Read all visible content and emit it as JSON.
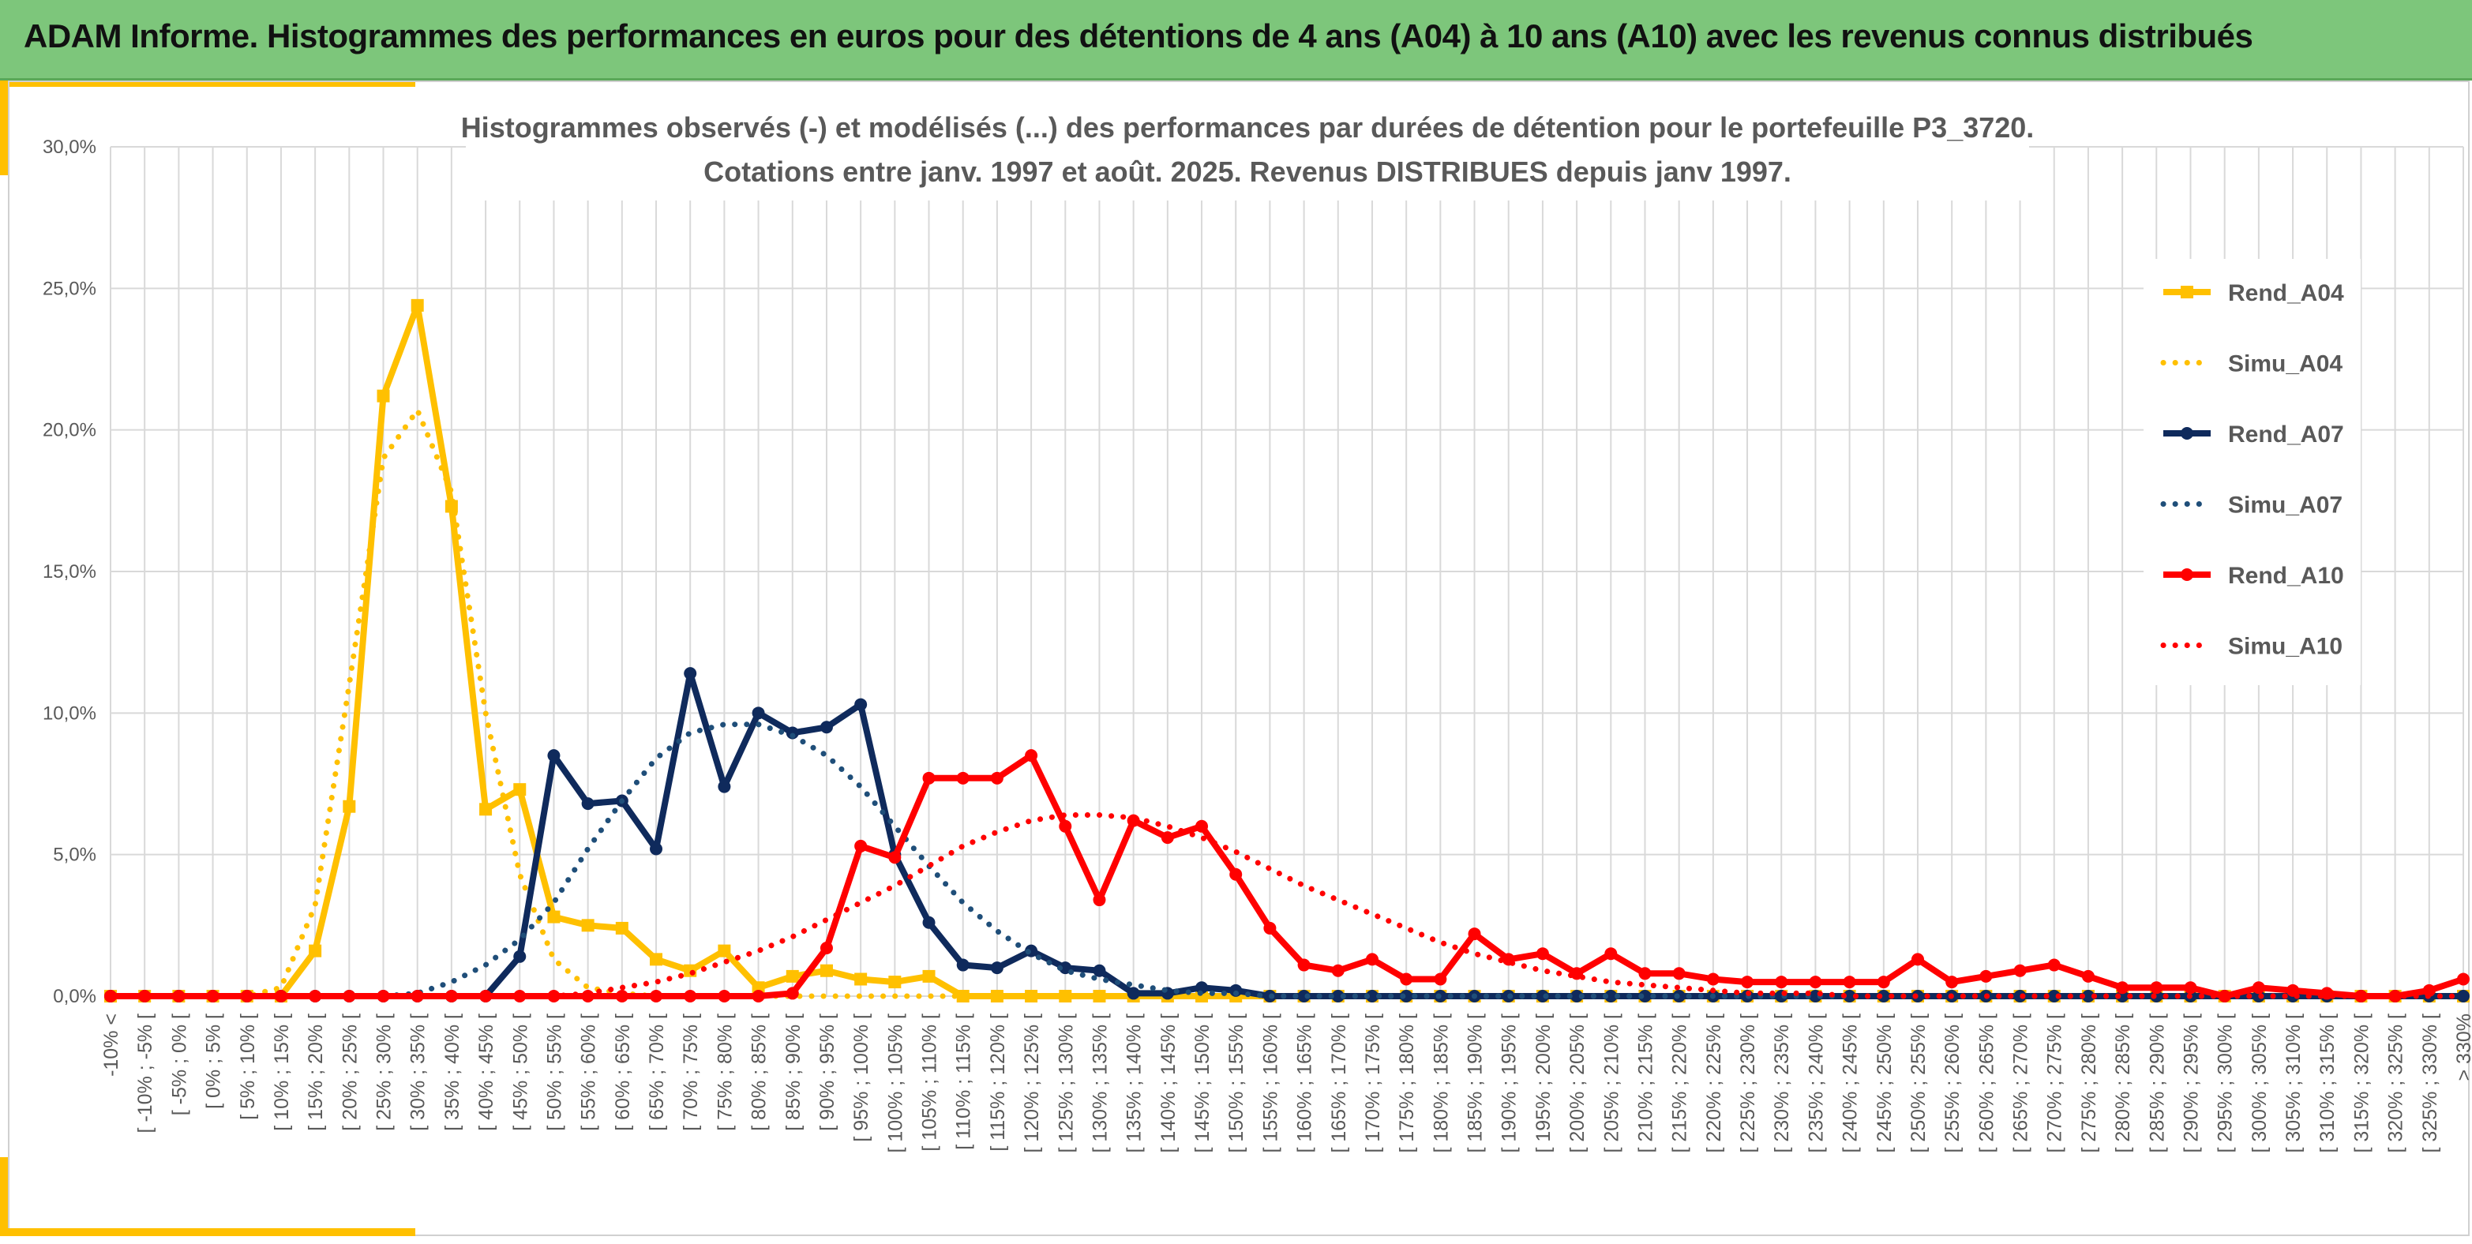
{
  "header": {
    "title": "ADAM Informe. Histogrammes des performances en euros pour des détentions de 4 ans (A04) à 10 ans (A10) avec les revenus connus distribués"
  },
  "colors": {
    "header_bg": "#7dc67b",
    "accent": "#ffc000",
    "A04": "#ffc000",
    "A07": "#0f2a5c",
    "A07_simu": "#1f4e79",
    "A10": "#ff0000"
  },
  "chart_data": {
    "type": "line",
    "title_lines": [
      "Histogrammes observés (-) et modélisés (...) des performances par durées de détention pour le portefeuille P3_3720.",
      "Cotations entre janv. 1997 et août. 2025. Revenus DISTRIBUES depuis janv 1997."
    ],
    "xlabel": "",
    "ylabel": "",
    "y_ticks": [
      "0,0%",
      "5,0%",
      "10,0%",
      "15,0%",
      "20,0%",
      "25,0%",
      "30,0%"
    ],
    "ylim": [
      0,
      30
    ],
    "grid": true,
    "legend_position": "right",
    "categories": [
      "-10% <",
      "[ -10% ; -5% [",
      "[ -5% ; 0% [",
      "[ 0% ; 5% [",
      "[ 5% ; 10% [",
      "[ 10% ; 15% [",
      "[ 15% ; 20% [",
      "[ 20% ; 25% [",
      "[ 25% ; 30% [",
      "[ 30% ; 35% [",
      "[ 35% ; 40% [",
      "[ 40% ; 45% [",
      "[ 45% ; 50% [",
      "[ 50% ; 55% [",
      "[ 55% ; 60% [",
      "[ 60% ; 65% [",
      "[ 65% ; 70% [",
      "[ 70% ; 75% [",
      "[ 75% ; 80% [",
      "[ 80% ; 85% [",
      "[ 85% ; 90% [",
      "[ 90% ; 95% [",
      "[ 95% ; 100% [",
      "[ 100% ; 105% [",
      "[ 105% ; 110% [",
      "[ 110% ; 115% [",
      "[ 115% ; 120% [",
      "[ 120% ; 125% [",
      "[ 125% ; 130% [",
      "[ 130% ; 135% [",
      "[ 135% ; 140% [",
      "[ 140% ; 145% [",
      "[ 145% ; 150% [",
      "[ 150% ; 155% [",
      "[ 155% ; 160% [",
      "[ 160% ; 165% [",
      "[ 165% ; 170% [",
      "[ 170% ; 175% [",
      "[ 175% ; 180% [",
      "[ 180% ; 185% [",
      "[ 185% ; 190% [",
      "[ 190% ; 195% [",
      "[ 195% ; 200% [",
      "[ 200% ; 205% [",
      "[ 205% ; 210% [",
      "[ 210% ; 215% [",
      "[ 215% ; 220% [",
      "[ 220% ; 225% [",
      "[ 225% ; 230% [",
      "[ 230% ; 235% [",
      "[ 235% ; 240% [",
      "[ 240% ; 245% [",
      "[ 245% ; 250% [",
      "[ 250% ; 255% [",
      "[ 255% ; 260% [",
      "[ 260% ; 265% [",
      "[ 265% ; 270% [",
      "[ 270% ; 275% [",
      "[ 275% ; 280% [",
      "[ 280% ; 285% [",
      "[ 285% ; 290% [",
      "[ 290% ; 295% [",
      "[ 295% ; 300% [",
      "[ 300% ; 305% [",
      "[ 305% ; 310% [",
      "[ 310% ; 315% [",
      "[ 315% ; 320% [",
      "[ 320% ; 325% [",
      "[ 325% ; 330% [",
      "> 330%"
    ],
    "series": [
      {
        "name": "Rend_A04",
        "style": "solid",
        "marker": "square",
        "color": "#ffc000",
        "values": [
          0,
          0,
          0,
          0,
          0,
          0,
          1.6,
          6.7,
          21.2,
          24.4,
          17.3,
          6.6,
          7.3,
          2.8,
          2.5,
          2.4,
          1.3,
          0.9,
          1.6,
          0.3,
          0.7,
          0.9,
          0.6,
          0.5,
          0.7,
          0,
          0,
          0,
          0,
          0,
          0,
          0,
          0,
          0,
          0,
          0,
          0,
          0,
          0,
          0,
          0,
          0,
          0,
          0,
          0,
          0,
          0,
          0,
          0,
          0,
          0,
          0,
          0,
          0,
          0,
          0,
          0,
          0,
          0,
          0,
          0,
          0,
          0,
          0,
          0,
          0,
          0,
          0,
          0,
          0
        ]
      },
      {
        "name": "Simu_A04",
        "style": "dotted",
        "marker": "none",
        "color": "#ffc000",
        "values": [
          0,
          0,
          0,
          0,
          0,
          0.3,
          3.2,
          11.0,
          19.0,
          20.7,
          17.8,
          10.0,
          4.3,
          1.3,
          0.3,
          0.1,
          0,
          0,
          0,
          0,
          0,
          0,
          0,
          0,
          0,
          0,
          0,
          0,
          0,
          0,
          0,
          0,
          0,
          0,
          0,
          0,
          0,
          0,
          0,
          0,
          0,
          0,
          0,
          0,
          0,
          0,
          0,
          0,
          0,
          0,
          0,
          0,
          0,
          0,
          0,
          0,
          0,
          0,
          0,
          0,
          0,
          0,
          0,
          0,
          0,
          0,
          0,
          0,
          0,
          0
        ]
      },
      {
        "name": "Rend_A07",
        "style": "solid",
        "marker": "circle",
        "color": "#0f2a5c",
        "values": [
          0,
          0,
          0,
          0,
          0,
          0,
          0,
          0,
          0,
          0,
          0,
          0,
          1.4,
          8.5,
          6.8,
          6.9,
          5.2,
          11.4,
          7.4,
          10.0,
          9.3,
          9.5,
          10.3,
          5.0,
          2.6,
          1.1,
          1.0,
          1.6,
          1.0,
          0.9,
          0.1,
          0.1,
          0.3,
          0.2,
          0,
          0,
          0,
          0,
          0,
          0,
          0,
          0,
          0,
          0,
          0,
          0,
          0,
          0,
          0,
          0,
          0,
          0,
          0,
          0,
          0,
          0,
          0,
          0,
          0,
          0,
          0,
          0,
          0,
          0,
          0,
          0,
          0,
          0,
          0,
          0
        ]
      },
      {
        "name": "Simu_A07",
        "style": "dotted",
        "marker": "none",
        "color": "#1f4e79",
        "values": [
          0,
          0,
          0,
          0,
          0,
          0,
          0,
          0,
          0,
          0.1,
          0.5,
          1.1,
          2.0,
          3.3,
          5.2,
          6.9,
          8.4,
          9.3,
          9.6,
          9.6,
          9.2,
          8.5,
          7.4,
          6.0,
          4.6,
          3.3,
          2.3,
          1.5,
          0.9,
          0.6,
          0.4,
          0.2,
          0.1,
          0.1,
          0,
          0,
          0,
          0,
          0,
          0,
          0,
          0,
          0,
          0,
          0,
          0,
          0,
          0,
          0,
          0,
          0,
          0,
          0,
          0,
          0,
          0,
          0,
          0,
          0,
          0,
          0,
          0,
          0,
          0,
          0,
          0,
          0,
          0,
          0,
          0
        ]
      },
      {
        "name": "Rend_A10",
        "style": "solid",
        "marker": "circle",
        "color": "#ff0000",
        "values": [
          0,
          0,
          0,
          0,
          0,
          0,
          0,
          0,
          0,
          0,
          0,
          0,
          0,
          0,
          0,
          0,
          0,
          0,
          0,
          0,
          0.1,
          1.7,
          5.3,
          4.9,
          7.7,
          7.7,
          7.7,
          8.5,
          6.0,
          3.4,
          6.2,
          5.6,
          6.0,
          4.3,
          2.4,
          1.1,
          0.9,
          1.3,
          0.6,
          0.6,
          2.2,
          1.3,
          1.5,
          0.8,
          1.5,
          0.8,
          0.8,
          0.6,
          0.5,
          0.5,
          0.5,
          0.5,
          0.5,
          1.3,
          0.5,
          0.7,
          0.9,
          1.1,
          0.7,
          0.3,
          0.3,
          0.3,
          0,
          0.3,
          0.2,
          0.1,
          0,
          0,
          0.2,
          0.6
        ]
      },
      {
        "name": "Simu_A10",
        "style": "dotted",
        "marker": "none",
        "color": "#ff0000",
        "values": [
          0,
          0,
          0,
          0,
          0,
          0,
          0,
          0,
          0,
          0,
          0,
          0,
          0,
          0,
          0.1,
          0.3,
          0.5,
          0.8,
          1.2,
          1.6,
          2.1,
          2.7,
          3.3,
          3.9,
          4.6,
          5.3,
          5.8,
          6.2,
          6.4,
          6.4,
          6.3,
          6.0,
          5.6,
          5.1,
          4.5,
          3.9,
          3.4,
          2.9,
          2.4,
          1.9,
          1.5,
          1.2,
          0.9,
          0.7,
          0.5,
          0.4,
          0.3,
          0.2,
          0.1,
          0.1,
          0.1,
          0,
          0,
          0,
          0,
          0,
          0,
          0,
          0,
          0,
          0,
          0,
          0,
          0,
          0,
          0,
          0,
          0,
          0,
          0
        ]
      }
    ]
  }
}
